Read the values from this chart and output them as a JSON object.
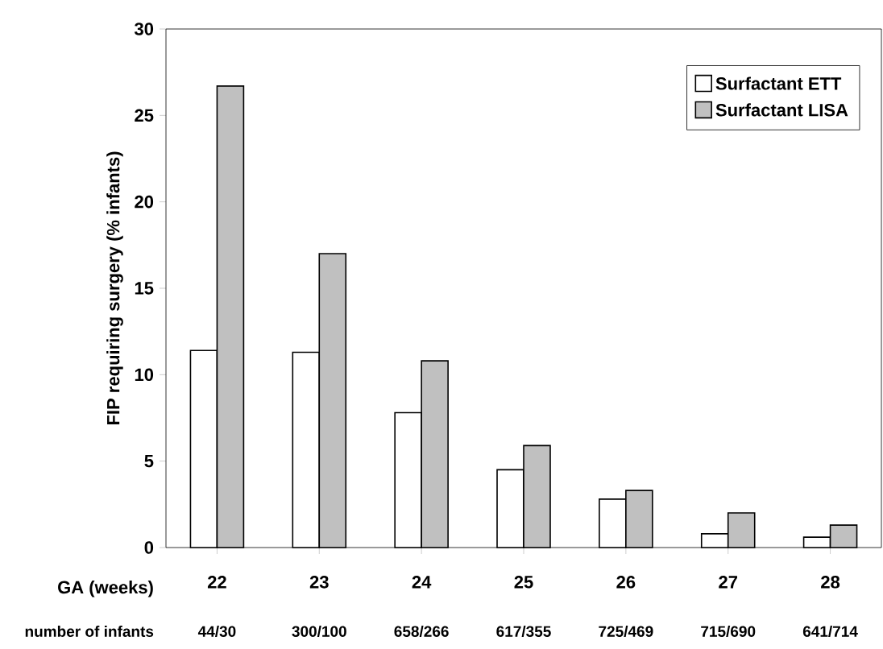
{
  "chart_data": {
    "type": "bar",
    "ylabel": "FIP requiring surgery (% infants)",
    "xlabel": "GA (weeks)",
    "categories": [
      "22",
      "23",
      "24",
      "25",
      "26",
      "27",
      "28"
    ],
    "series": [
      {
        "name": "Surfactant ETT",
        "color": "#ffffff",
        "values": [
          11.4,
          11.3,
          7.8,
          4.5,
          2.8,
          0.8,
          0.6
        ]
      },
      {
        "name": "Surfactant LISA",
        "color": "#c0c0c0",
        "values": [
          26.7,
          17.0,
          10.8,
          5.9,
          3.3,
          2.0,
          1.3
        ]
      }
    ],
    "ylim": [
      0,
      30
    ],
    "yticks": [
      0,
      5,
      10,
      15,
      20,
      25,
      30
    ],
    "legend": "top right",
    "grid": false,
    "annotations": [
      "number of infants",
      "44/30",
      "300/100",
      "658/266",
      "617/355",
      "725/469",
      "715/690",
      "641/714"
    ]
  }
}
